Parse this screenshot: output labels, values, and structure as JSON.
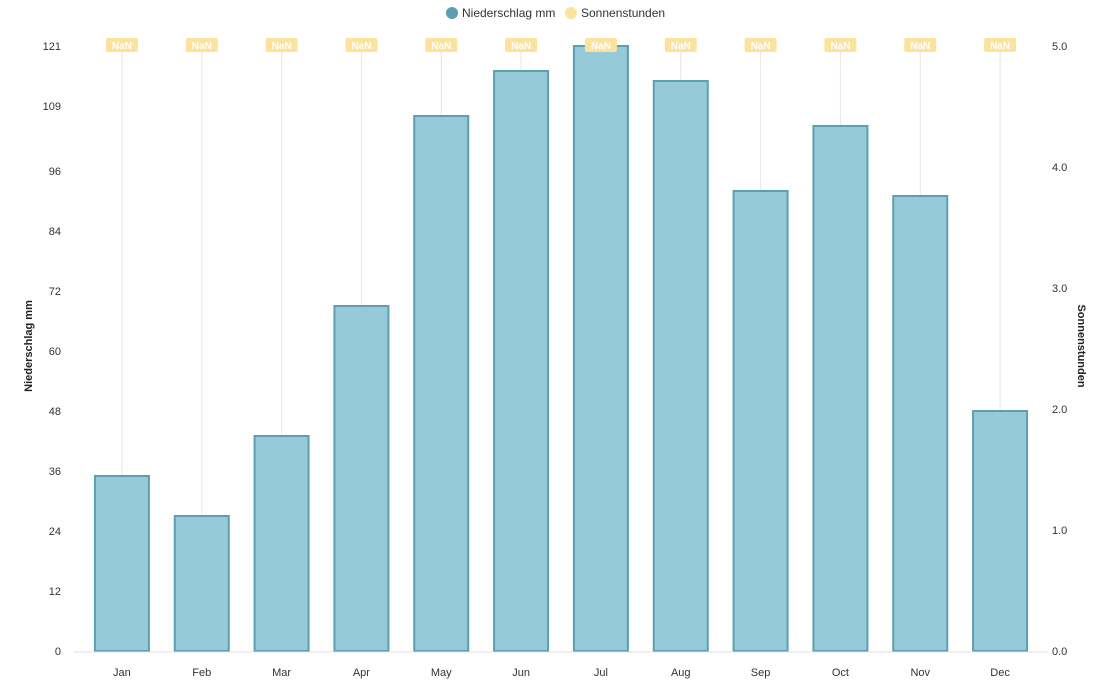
{
  "chart_data": {
    "type": "bar",
    "categories": [
      "Jan",
      "Feb",
      "Mar",
      "Apr",
      "May",
      "Jun",
      "Jul",
      "Aug",
      "Sep",
      "Oct",
      "Nov",
      "Dec"
    ],
    "series": [
      {
        "name": "Niederschlag mm",
        "type": "bar",
        "axis": "left",
        "color": "#97cad9",
        "border_color": "#5b9fb0",
        "legend_color": "#5b9fb0",
        "values": [
          35,
          27,
          43,
          69,
          107,
          116,
          121,
          114,
          92,
          105,
          91,
          48
        ]
      },
      {
        "name": "Sonnenstunden",
        "type": "line",
        "axis": "right",
        "color": "#fbe39d",
        "legend_color": "#fbe39d",
        "values": [
          null,
          null,
          null,
          null,
          null,
          null,
          null,
          null,
          null,
          null,
          null,
          null
        ],
        "data_labels": [
          "NaN",
          "NaN",
          "NaN",
          "NaN",
          "NaN",
          "NaN",
          "NaN",
          "NaN",
          "NaN",
          "NaN",
          "NaN",
          "NaN"
        ]
      }
    ],
    "y_left": {
      "label": "Niederschlag mm",
      "range": [
        0,
        121
      ],
      "ticks": [
        "0",
        "12",
        "24",
        "36",
        "48",
        "60",
        "72",
        "84",
        "96",
        "109",
        "121"
      ]
    },
    "y_right": {
      "label": "Sonnenstunden",
      "range": [
        0,
        5
      ],
      "ticks": [
        "0.0",
        "1.0",
        "2.0",
        "3.0",
        "4.0",
        "5.0"
      ]
    },
    "grid": "vertical",
    "legend_position": "top-center"
  }
}
